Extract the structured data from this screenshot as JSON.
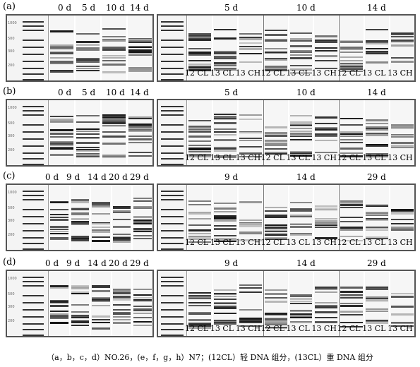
{
  "rows": [
    {
      "label": "(a)",
      "left_days": [
        "0 d",
        "5 d",
        "10 d",
        "14 d"
      ],
      "right_days": [
        "5 d",
        "10 d",
        "14 d"
      ],
      "lanes": [
        "12 CL",
        "13 CL",
        "13 CH",
        "12 CL",
        "13 CL",
        "13 CH",
        "12 CL",
        "13 CL",
        "13 CH"
      ]
    },
    {
      "label": "(b)",
      "left_days": [
        "0 d",
        "5 d",
        "10 d",
        "14 d"
      ],
      "right_days": [
        "5 d",
        "10 d",
        "14 d"
      ],
      "lanes": [
        "12 CL",
        "13 CL",
        "13 CH",
        "12 CL",
        "13 CL",
        "13 CH",
        "12 CL",
        "13 CL",
        "13 CH"
      ]
    },
    {
      "label": "(c)",
      "left_days": [
        "0 d",
        "9 d",
        "14 d",
        "20 d",
        "29 d"
      ],
      "right_days": [
        "9 d",
        "14 d",
        "29 d"
      ],
      "lanes": [
        "12 CL",
        "13 CL",
        "13 CH",
        "12 CL",
        "13 CL",
        "13 CH",
        "12 CL",
        "13 CL",
        "13 CH"
      ]
    },
    {
      "label": "(d)",
      "left_days": [
        "0 d",
        "9 d",
        "14 d",
        "20 d",
        "29 d"
      ],
      "right_days": [
        "9 d",
        "14 d",
        "29 d"
      ],
      "lanes": [
        "12 CL",
        "13 CL",
        "13 CH",
        "12 CL",
        "13 CL",
        "13 CH",
        "12 CL",
        "13 CL",
        "13 CH"
      ]
    }
  ],
  "ladder_ticks": [
    "1000",
    "500",
    "300",
    "200",
    "100"
  ],
  "caption": "（a，b，c，d）NO.26，(e，f，g，h）N7；(12CL）轻 DNA 组分，(13CL）重 DNA 组分"
}
